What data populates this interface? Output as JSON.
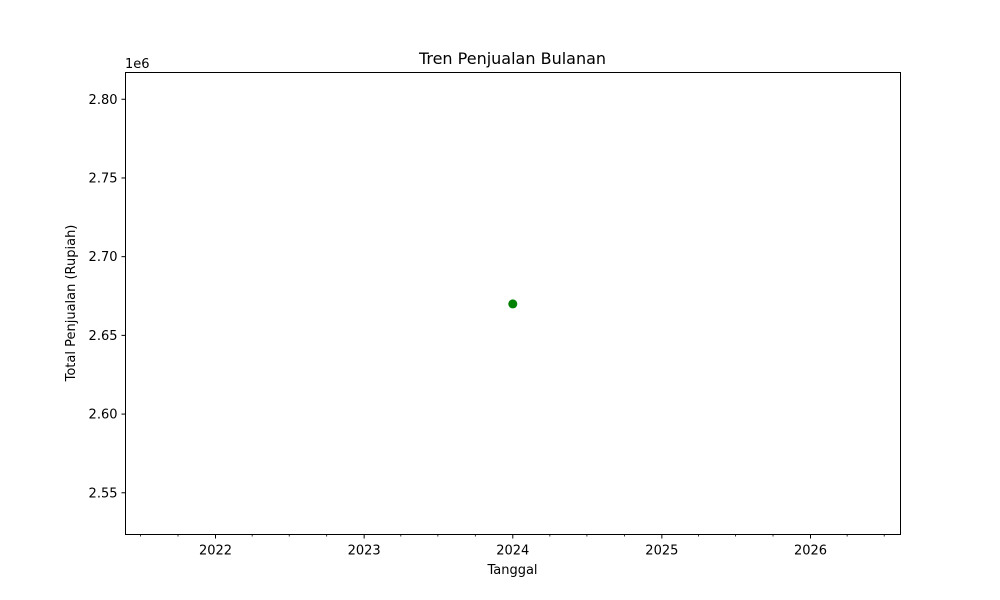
{
  "chart_data": {
    "type": "scatter",
    "title": "Tren Penjualan Bulanan",
    "xlabel": "Tanggal",
    "ylabel": "Total Penjualan (Rupiah)",
    "y_offset_label": "1e6",
    "x_axis_type": "date",
    "xlim": [
      "2021-05-25",
      "2026-08-10"
    ],
    "ylim": [
      2523500,
      2817000
    ],
    "x_ticks": [
      "2022",
      "2023",
      "2024",
      "2025",
      "2026"
    ],
    "y_ticks": [
      "2.55",
      "2.60",
      "2.65",
      "2.70",
      "2.75",
      "2.80"
    ],
    "y_tick_values": [
      2550000,
      2600000,
      2650000,
      2700000,
      2750000,
      2800000
    ],
    "grid": false,
    "series": [
      {
        "color": "#008000",
        "marker": "circle",
        "points": [
          {
            "x": "2024-01-01",
            "y": 2670000
          }
        ]
      }
    ]
  }
}
